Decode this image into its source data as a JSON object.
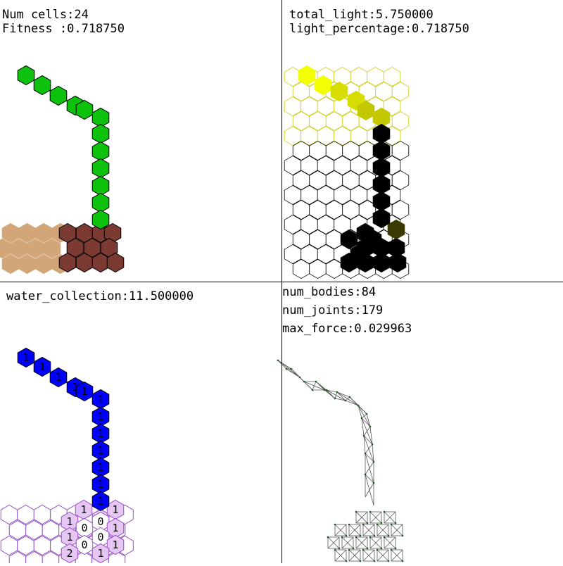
{
  "panels": {
    "morphology": {
      "num_cells": "Num cells:24",
      "fitness": "Fitness :0.718750"
    },
    "light": {
      "total_light": "total_light:5.750000",
      "light_percentage": "light_percentage:0.718750"
    },
    "water": {
      "water_collection": "water_collection:11.500000"
    },
    "physics": {
      "num_bodies": "num_bodies:84",
      "num_joints": "num_joints:179",
      "max_force": "max_force:0.029963"
    }
  },
  "colors": {
    "stem_green": "#0cc20c",
    "root_brown": "#7b3b33",
    "sand": "#d2a679",
    "water_blue": "#0000ff",
    "soil_violet": "#e6c6f2",
    "soil_outline": "#8a3fbf",
    "light_bright": "#f2ff00",
    "light_mid": "#d8dd00",
    "light_dim": "#c4c800",
    "shadow": "#000000",
    "shade_olive": "#3a3a00",
    "mesh_line": "#555555",
    "mesh_node": "#1a5a1a"
  },
  "organism": {
    "stem_cells": 16,
    "root_cells": 8
  },
  "water_labels": {
    "stem": [
      "1",
      "1",
      "1",
      "1",
      "1",
      "1",
      "1",
      "1",
      "1",
      "1",
      "1",
      "1",
      "1",
      "1",
      "1",
      "1"
    ],
    "soil": [
      "1",
      "1",
      "1",
      "1",
      "0",
      "0",
      "1",
      "1",
      "0",
      "0",
      "1",
      "2",
      "1"
    ]
  }
}
